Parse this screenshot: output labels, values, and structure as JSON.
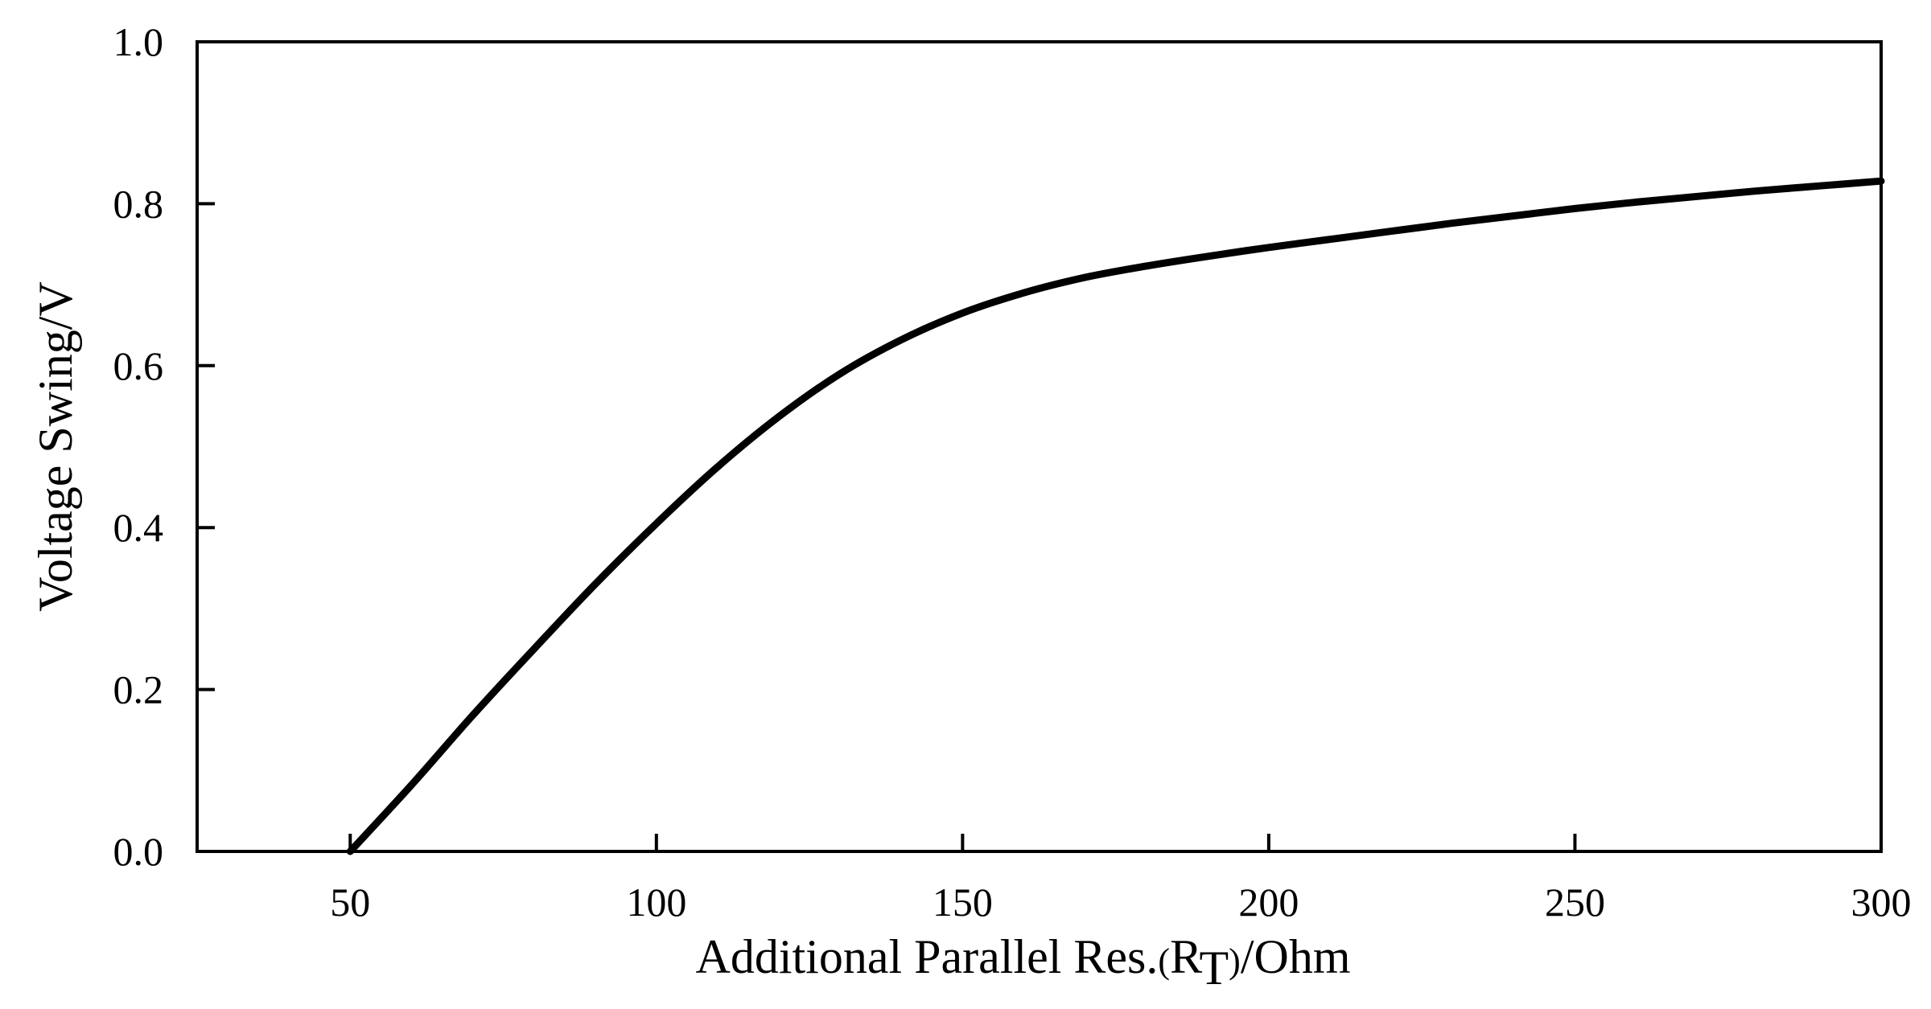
{
  "chart_data": {
    "type": "line",
    "title": "",
    "xlabel": {
      "prefix": "Additional Parallel Res.",
      "paren_open": "(",
      "symbol": "R",
      "subscript": "T",
      "paren_close": ")",
      "suffix": "/Ohm"
    },
    "ylabel": "Voltage Swing/V",
    "xlim": [
      25,
      300
    ],
    "ylim": [
      0.0,
      1.0
    ],
    "xticks": [
      50,
      100,
      150,
      200,
      250,
      300
    ],
    "yticks": [
      0.0,
      0.2,
      0.4,
      0.6,
      0.8,
      1.0
    ],
    "ytick_labels": [
      "0.0",
      "0.2",
      "0.4",
      "0.6",
      "0.8",
      "1.0"
    ],
    "grid": false,
    "legend": "none",
    "line_color": "#000000",
    "series": [
      {
        "x": [
          50,
          60,
          70,
          80,
          90,
          100,
          110,
          120,
          130,
          140,
          150,
          160,
          170,
          180,
          190,
          200,
          210,
          220,
          230,
          240,
          250,
          260,
          270,
          280,
          290,
          300
        ],
        "values": [
          0.0,
          0.082,
          0.168,
          0.25,
          0.33,
          0.405,
          0.475,
          0.537,
          0.59,
          0.632,
          0.665,
          0.69,
          0.709,
          0.723,
          0.735,
          0.746,
          0.756,
          0.766,
          0.776,
          0.785,
          0.794,
          0.802,
          0.809,
          0.816,
          0.822,
          0.828
        ]
      }
    ]
  }
}
